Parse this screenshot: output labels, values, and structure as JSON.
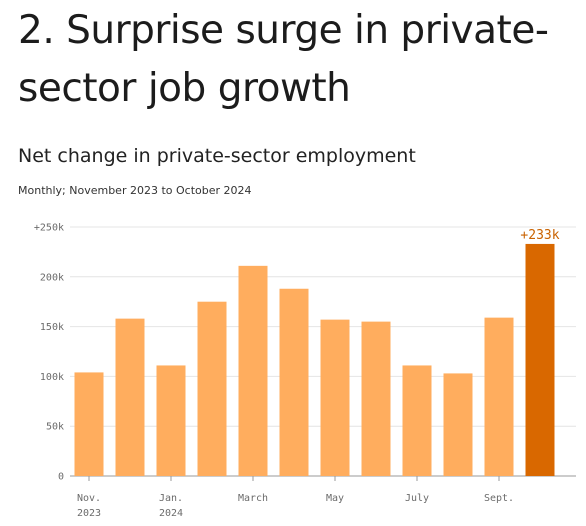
{
  "headline": "2. Surprise surge in private-sector job growth",
  "chart_data": {
    "type": "bar",
    "title": "Net change in private-sector employment",
    "subtitle": "Monthly; November 2023 to October 2024",
    "categories": [
      "Nov. 2023",
      "Dec. 2023",
      "Jan. 2024",
      "Feb. 2024",
      "March 2024",
      "April 2024",
      "May 2024",
      "June 2024",
      "July 2024",
      "Aug. 2024",
      "Sept. 2024",
      "Oct. 2024"
    ],
    "values": [
      104,
      158,
      111,
      175,
      211,
      188,
      157,
      155,
      111,
      103,
      159,
      233
    ],
    "value_unit": "thousands",
    "ylim": [
      0,
      250
    ],
    "y_ticks": [
      {
        "value": 250,
        "label": "+250k"
      },
      {
        "value": 200,
        "label": "200k"
      },
      {
        "value": 150,
        "label": "150k"
      },
      {
        "value": 100,
        "label": "100k"
      },
      {
        "value": 50,
        "label": "50k"
      },
      {
        "value": 0,
        "label": "0"
      }
    ],
    "x_ticks": [
      {
        "index": 0,
        "lines": [
          "Nov.",
          "2023"
        ]
      },
      {
        "index": 2,
        "lines": [
          "Jan.",
          "2024"
        ]
      },
      {
        "index": 4,
        "lines": [
          "March"
        ]
      },
      {
        "index": 6,
        "lines": [
          "May"
        ]
      },
      {
        "index": 8,
        "lines": [
          "July"
        ]
      },
      {
        "index": 10,
        "lines": [
          "Sept."
        ]
      }
    ],
    "highlight_index": 11,
    "highlight_label": "+233k",
    "grid": true,
    "colors": {
      "bar": "#ffad5e",
      "highlight": "#d96800",
      "grid": "#e4e4e4",
      "baseline": "#9a9a9a"
    }
  }
}
